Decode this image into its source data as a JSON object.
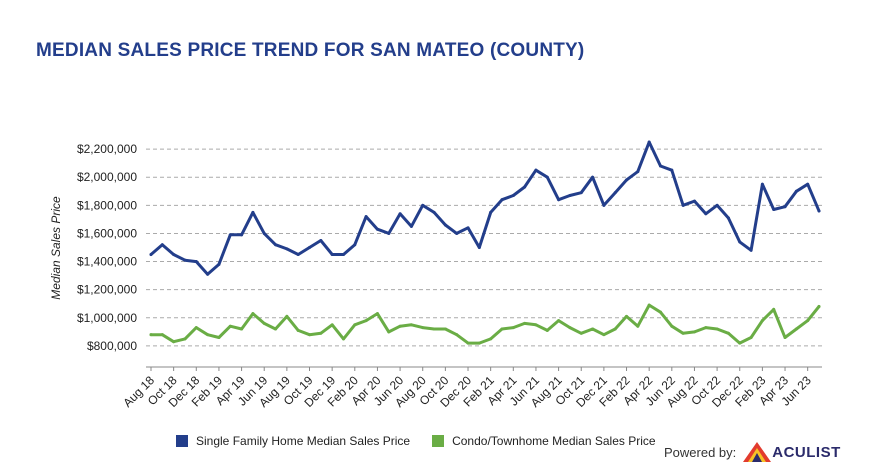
{
  "title": "MEDIAN SALES PRICE TREND FOR SAN MATEO (COUNTY)",
  "colors": {
    "title": "#233e8b",
    "single_family": "#233e8b",
    "condo": "#6aad45",
    "grid": "#aaaaaa"
  },
  "legend": {
    "single_family": "Single Family Home Median Sales Price",
    "condo": "Condo/Townhome Median Sales Price"
  },
  "powered_by": {
    "label": "Powered by:",
    "brand": "ACULIST",
    "logo_icon": "aculist-triangle-logo-icon"
  },
  "chart_data": {
    "type": "line",
    "title": "MEDIAN SALES PRICE TREND FOR SAN MATEO (COUNTY)",
    "xlabel": "",
    "ylabel": "Median Sales Price",
    "ylim": [
      650000,
      2350000
    ],
    "yticks": [
      800000,
      1000000,
      1200000,
      1400000,
      1600000,
      1800000,
      2000000,
      2200000
    ],
    "ytick_labels": [
      "$800,000",
      "$1,000,000",
      "$1,200,000",
      "$1,400,000",
      "$1,600,000",
      "$1,800,000",
      "$2,000,000",
      "$2,200,000"
    ],
    "grid": "horizontal dashed",
    "legend_position": "bottom",
    "x": [
      "Aug 18",
      "Sep 18",
      "Oct 18",
      "Nov 18",
      "Dec 18",
      "Jan 19",
      "Feb 19",
      "Mar 19",
      "Apr 19",
      "May 19",
      "Jun 19",
      "Jul 19",
      "Aug 19",
      "Sep 19",
      "Oct 19",
      "Nov 19",
      "Dec 19",
      "Jan 20",
      "Feb 20",
      "Mar 20",
      "Apr 20",
      "May 20",
      "Jun 20",
      "Jul 20",
      "Aug 20",
      "Sep 20",
      "Oct 20",
      "Nov 20",
      "Dec 20",
      "Jan 21",
      "Feb 21",
      "Mar 21",
      "Apr 21",
      "May 21",
      "Jun 21",
      "Jul 21",
      "Aug 21",
      "Sep 21",
      "Oct 21",
      "Nov 21",
      "Dec 21",
      "Jan 22",
      "Feb 22",
      "Mar 22",
      "Apr 22",
      "May 22",
      "Jun 22",
      "Jul 22",
      "Aug 22",
      "Sep 22",
      "Oct 22",
      "Nov 22",
      "Dec 22",
      "Jan 23",
      "Feb 23",
      "Mar 23",
      "Apr 23",
      "May 23",
      "Jun 23",
      "Jul 23"
    ],
    "x_tick_labels": [
      "Aug 18",
      "Oct 18",
      "Dec 18",
      "Feb 19",
      "Apr 19",
      "Jun 19",
      "Aug 19",
      "Oct 19",
      "Dec 19",
      "Feb 20",
      "Apr 20",
      "Jun 20",
      "Aug 20",
      "Oct 20",
      "Dec 20",
      "Feb 21",
      "Apr 21",
      "Jun 21",
      "Aug 21",
      "Oct 21",
      "Dec 21",
      "Feb 22",
      "Apr 22",
      "Jun 22",
      "Aug 22",
      "Oct 22",
      "Dec 22",
      "Feb 23",
      "Apr 23",
      "Jun 23"
    ],
    "series": [
      {
        "name": "Single Family Home Median Sales Price",
        "values": [
          1450000,
          1520000,
          1450000,
          1410000,
          1400000,
          1310000,
          1380000,
          1590000,
          1590000,
          1750000,
          1600000,
          1520000,
          1490000,
          1450000,
          1500000,
          1550000,
          1450000,
          1450000,
          1520000,
          1720000,
          1630000,
          1600000,
          1740000,
          1650000,
          1800000,
          1750000,
          1660000,
          1600000,
          1640000,
          1500000,
          1750000,
          1840000,
          1870000,
          1930000,
          2050000,
          2000000,
          1840000,
          1870000,
          1890000,
          2000000,
          1800000,
          1890000,
          1980000,
          2040000,
          2250000,
          2080000,
          2050000,
          1800000,
          1830000,
          1740000,
          1800000,
          1710000,
          1540000,
          1480000,
          1950000,
          1770000,
          1790000,
          1900000,
          1950000,
          1760000
        ]
      },
      {
        "name": "Condo/Townhome Median Sales Price",
        "values": [
          880000,
          880000,
          830000,
          850000,
          930000,
          880000,
          860000,
          940000,
          920000,
          1030000,
          960000,
          920000,
          1010000,
          910000,
          880000,
          890000,
          950000,
          850000,
          950000,
          980000,
          1030000,
          900000,
          940000,
          950000,
          930000,
          920000,
          920000,
          880000,
          820000,
          820000,
          850000,
          920000,
          930000,
          960000,
          950000,
          910000,
          980000,
          930000,
          890000,
          920000,
          880000,
          920000,
          1010000,
          940000,
          1090000,
          1040000,
          940000,
          890000,
          900000,
          930000,
          920000,
          890000,
          820000,
          860000,
          980000,
          1060000,
          860000,
          920000,
          980000,
          1080000
        ]
      }
    ]
  }
}
